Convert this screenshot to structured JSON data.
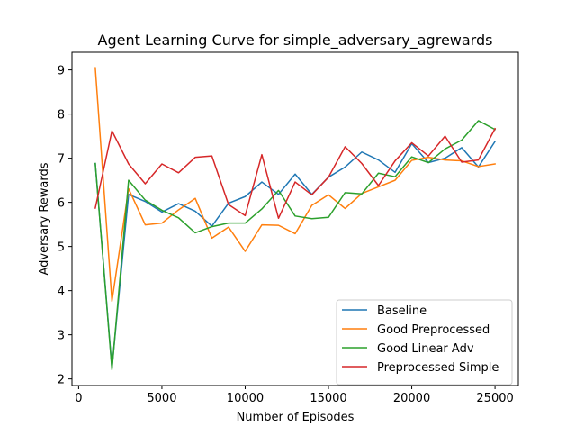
{
  "chart_data": {
    "type": "line",
    "title": "Agent Learning Curve for simple_adversary_agrewards",
    "xlabel": "Number of Episodes",
    "ylabel": "Adversary Rewards",
    "xlim": [
      -400,
      26400
    ],
    "ylim": [
      1.85,
      9.4
    ],
    "xticks": [
      0,
      5000,
      10000,
      15000,
      20000,
      25000
    ],
    "yticks": [
      2,
      3,
      4,
      5,
      6,
      7,
      8,
      9
    ],
    "grid": false,
    "legend_position": "lower-right",
    "x": [
      1000,
      2000,
      3000,
      4000,
      5000,
      6000,
      7000,
      8000,
      9000,
      10000,
      11000,
      12000,
      13000,
      14000,
      15000,
      16000,
      17000,
      18000,
      19000,
      20000,
      21000,
      22000,
      23000,
      24000,
      25000
    ],
    "series": [
      {
        "name": "Baseline",
        "color": "#1f77b4",
        "values": [
          6.88,
          2.25,
          6.18,
          6.02,
          5.78,
          5.97,
          5.8,
          5.46,
          5.98,
          6.13,
          6.46,
          6.18,
          6.64,
          6.18,
          6.57,
          6.8,
          7.14,
          6.96,
          6.68,
          7.33,
          6.9,
          7.0,
          7.24,
          6.8,
          7.38
        ]
      },
      {
        "name": "Good Preprocessed",
        "color": "#ff7f0e",
        "values": [
          9.05,
          3.76,
          6.31,
          5.49,
          5.53,
          5.83,
          6.09,
          5.19,
          5.44,
          4.89,
          5.49,
          5.48,
          5.29,
          5.93,
          6.17,
          5.86,
          6.2,
          6.35,
          6.5,
          6.95,
          7.02,
          6.96,
          6.94,
          6.81,
          6.87
        ]
      },
      {
        "name": "Good Linear Adv",
        "color": "#2ca02c",
        "values": [
          6.88,
          2.21,
          6.5,
          6.05,
          5.82,
          5.65,
          5.31,
          5.45,
          5.53,
          5.53,
          5.85,
          6.27,
          5.69,
          5.63,
          5.66,
          6.22,
          6.19,
          6.66,
          6.58,
          7.03,
          6.9,
          7.21,
          7.41,
          7.85,
          7.65
        ]
      },
      {
        "name": "Preprocessed Simple",
        "color": "#d62728",
        "values": [
          5.87,
          7.62,
          6.87,
          6.42,
          6.87,
          6.67,
          7.02,
          7.05,
          5.95,
          5.7,
          7.08,
          5.64,
          6.46,
          6.17,
          6.57,
          7.26,
          6.88,
          6.38,
          6.94,
          7.35,
          7.05,
          7.5,
          6.91,
          6.96,
          7.67
        ]
      }
    ]
  }
}
